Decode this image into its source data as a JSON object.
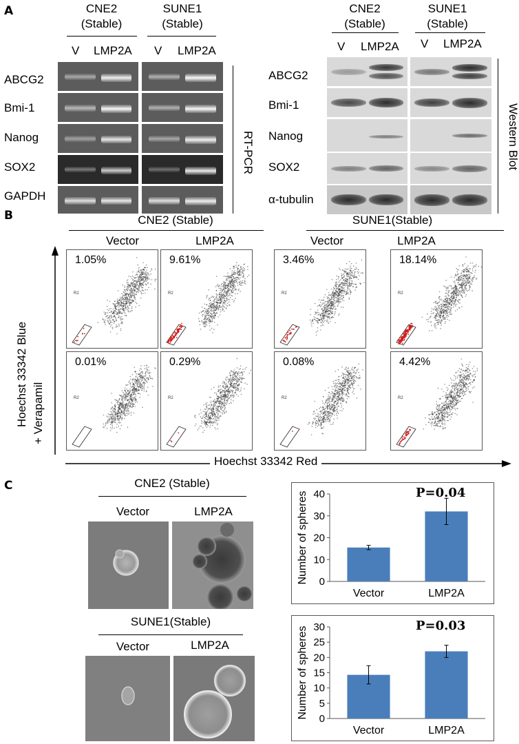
{
  "panelA": {
    "letter": "A",
    "rtpcr": {
      "groups": [
        {
          "name": "CNE2",
          "sub": "(Stable)"
        },
        {
          "name": "SUNE1",
          "sub": "(Stable)"
        }
      ],
      "lanes": [
        "V",
        "LMP2A",
        "V",
        "LMP2A"
      ],
      "genes": [
        "ABCG2",
        "Bmi-1",
        "Nanog",
        "SOX2",
        "GAPDH"
      ],
      "method": "RT-PCR"
    },
    "wb": {
      "groups": [
        {
          "name": "CNE2",
          "sub": "(Stable)"
        },
        {
          "name": "SUNE1",
          "sub": "(Stable)"
        }
      ],
      "lanes": [
        "V",
        "LMP2A",
        "V",
        "LMP2A"
      ],
      "proteins": [
        "ABCG2",
        "Bmi-1",
        "Nanog",
        "SOX2",
        "α-tubulin"
      ],
      "method": "Western Blot"
    }
  },
  "panelB": {
    "letter": "B",
    "groups": [
      "CNE2  (Stable)",
      "SUNE1(Stable)"
    ],
    "columns": [
      "Vector",
      "LMP2A",
      "Vector",
      "LMP2A"
    ],
    "y_label": "Hoechst 33342 Blue",
    "row2_label": "+ Verapamil",
    "x_label": "Hoechst  33342 Red",
    "gate_label": "R2",
    "percent_row1": [
      "1.05%",
      "9.61%",
      "3.46%",
      "18.14%"
    ],
    "percent_row2": [
      "0.01%",
      "0.29%",
      "0.08%",
      "4.42%"
    ]
  },
  "panelC": {
    "letter": "C",
    "images": [
      {
        "group": "CNE2 (Stable)",
        "cols": [
          "Vector",
          "LMP2A"
        ]
      },
      {
        "group": "SUNE1(Stable)",
        "cols": [
          "Vector",
          "LMP2A"
        ]
      }
    ]
  },
  "chart_data": [
    {
      "type": "bar",
      "categories": [
        "Vector",
        "LMP2A"
      ],
      "values": [
        15.5,
        32
      ],
      "errors": [
        1,
        6
      ],
      "ylabel": "Number of spheres",
      "ylim": [
        0,
        40
      ],
      "yticks": [
        "0",
        "10",
        "20",
        "30",
        "40"
      ],
      "annotation": "P=0.04",
      "color": "#4a7ebb",
      "grid": false
    },
    {
      "type": "bar",
      "categories": [
        "Vector",
        "LMP2A"
      ],
      "values": [
        14.3,
        22
      ],
      "errors": [
        3,
        2
      ],
      "ylabel": "Number of spheres",
      "ylim": [
        0,
        30
      ],
      "yticks": [
        "0",
        "5",
        "10",
        "15",
        "20",
        "25",
        "30"
      ],
      "annotation": "P=0.03",
      "color": "#4a7ebb",
      "grid": false
    }
  ]
}
